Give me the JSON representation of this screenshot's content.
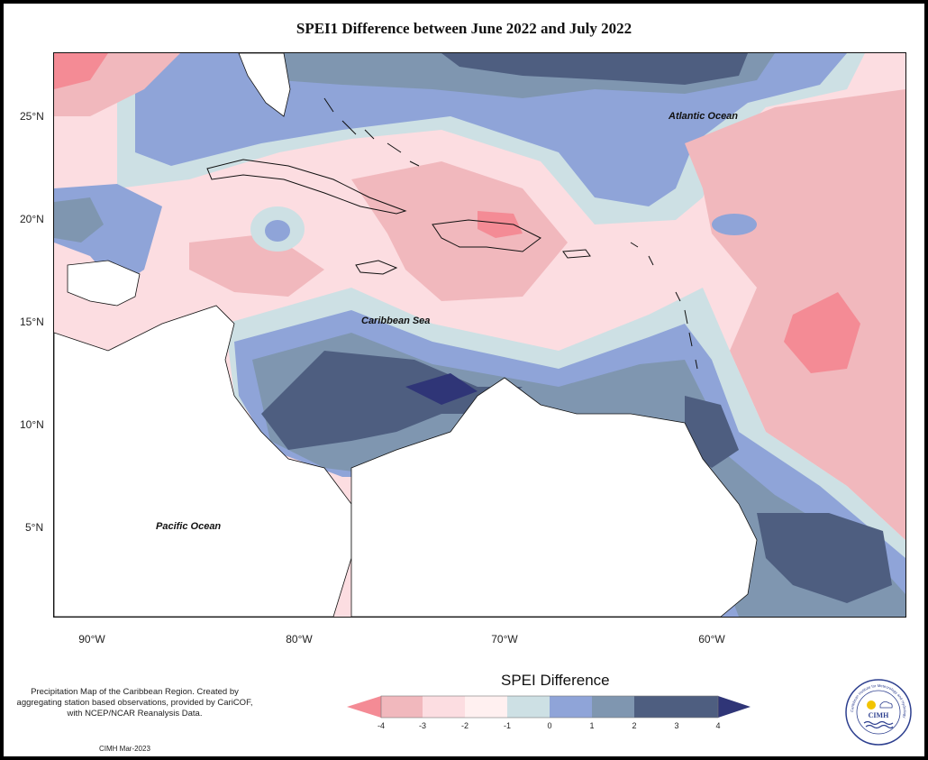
{
  "title": "SPEI1 Difference between June 2022 and July 2022",
  "map": {
    "lat_labels": [
      "25°N",
      "20°N",
      "15°N",
      "10°N",
      "5°N"
    ],
    "lon_labels": [
      "90°W",
      "80°W",
      "70°W",
      "60°W"
    ],
    "place_labels": {
      "atlantic": "Atlantic Ocean",
      "caribbean": "Caribbean Sea",
      "pacific": "Pacific Ocean"
    }
  },
  "legend": {
    "title": "SPEI Difference",
    "ticks": [
      "-4",
      "-3",
      "-2",
      "-1",
      "0",
      "1",
      "2",
      "3",
      "4"
    ],
    "colors": [
      "#f48b95",
      "#f1b8bd",
      "#fcdde1",
      "#fff0f0",
      "#cde0e4",
      "#8fa4d8",
      "#7f96b0",
      "#4e5e80",
      "#2f3577"
    ]
  },
  "notes": {
    "description": "Precipitation Map of the Caribbean Region. Created by aggregating station based observations, provided by CariCOF, with NCEP/NCAR Reanalysis Data.",
    "credit": "CIMH Mar-2023"
  },
  "logo": {
    "name": "CIMH",
    "ring_text": "Caribbean Institute for Meteorology and Hydrology"
  }
}
